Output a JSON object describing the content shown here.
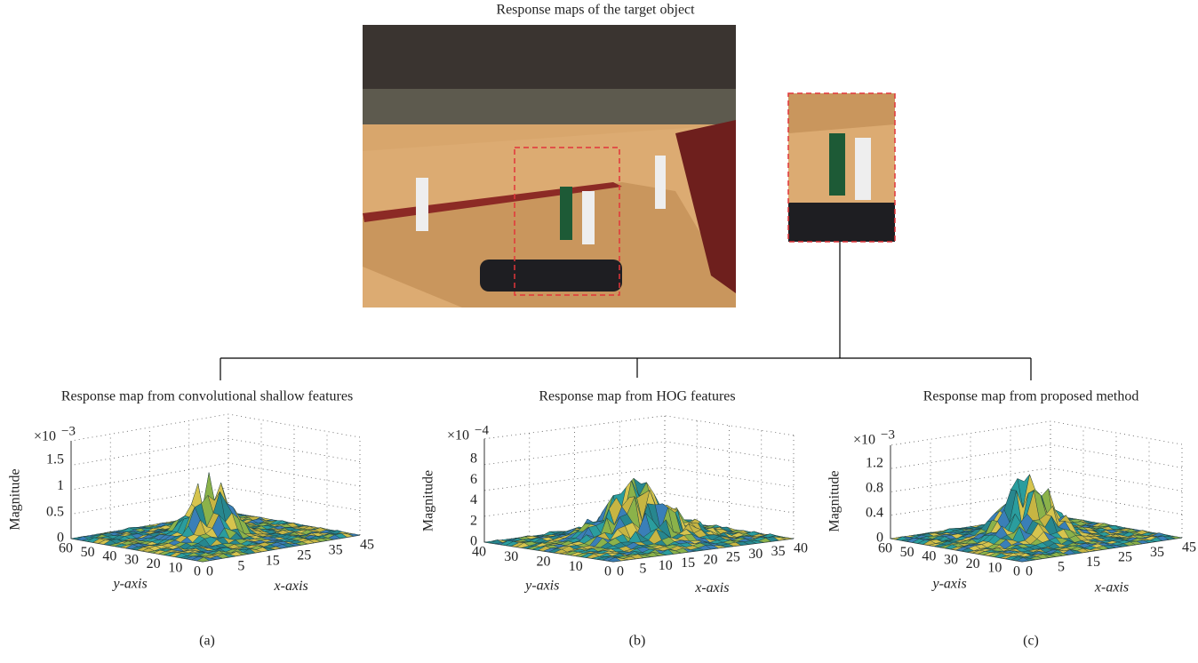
{
  "header": {
    "title": "Response maps of the target object"
  },
  "panels": [
    {
      "title": "Response map from convolutional shallow features",
      "exponent_base": "×10",
      "exponent": "−3",
      "z_axis_label": "Magnitude",
      "z_ticks": [
        "0",
        "0.5",
        "1",
        "1.5"
      ],
      "y_axis_label": "y-axis",
      "y_ticks": [
        "60",
        "50",
        "40",
        "30",
        "20",
        "10",
        "0"
      ],
      "x_axis_label": "x-axis",
      "x_ticks": [
        "0",
        "5",
        "15",
        "25",
        "35",
        "45"
      ],
      "caption": "(a)"
    },
    {
      "title": "Response map from HOG features",
      "exponent_base": "×10",
      "exponent": "−4",
      "z_axis_label": "Magnitude",
      "z_ticks": [
        "0",
        "2",
        "4",
        "6",
        "8"
      ],
      "y_axis_label": "y-axis",
      "y_ticks": [
        "40",
        "30",
        "20",
        "10",
        "0"
      ],
      "x_axis_label": "x-axis",
      "x_ticks": [
        "0",
        "5",
        "10",
        "15",
        "20",
        "25",
        "30",
        "35",
        "40"
      ],
      "caption": "(b)"
    },
    {
      "title": "Response map from proposed method",
      "exponent_base": "×10",
      "exponent": "−3",
      "z_axis_label": "Magnitude",
      "z_ticks": [
        "0",
        "0.4",
        "0.8",
        "1.2"
      ],
      "y_axis_label": "y-axis",
      "y_ticks": [
        "60",
        "50",
        "40",
        "30",
        "20",
        "10",
        "0"
      ],
      "x_axis_label": "x-axis",
      "x_ticks": [
        "0",
        "5",
        "15",
        "25",
        "35",
        "45"
      ],
      "caption": "(c)"
    }
  ]
}
